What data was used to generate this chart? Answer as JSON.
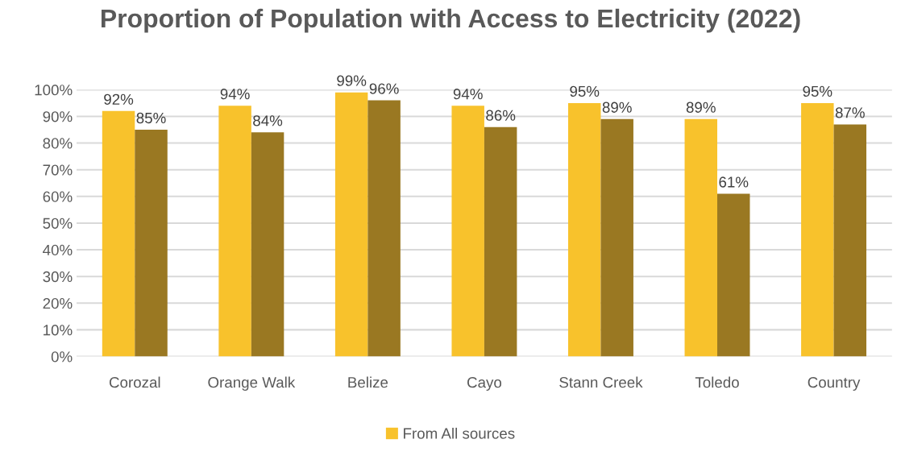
{
  "chart_data": {
    "type": "bar",
    "title": "Proportion of Population with Access to Electricity (2022)",
    "categories": [
      "Corozal",
      "Orange Walk",
      "Belize",
      "Cayo",
      "Stann Creek",
      "Toledo",
      "Country"
    ],
    "series": [
      {
        "name": "From All sources",
        "color": "#f8c22c",
        "values": [
          92,
          94,
          99,
          94,
          95,
          89,
          95
        ],
        "value_labels": [
          "92%",
          "94%",
          "99%",
          "94%",
          "95%",
          "89%",
          "95%"
        ]
      },
      {
        "color": "#9a7822",
        "values": [
          85,
          84,
          96,
          86,
          89,
          61,
          87
        ],
        "value_labels": [
          "85%",
          "84%",
          "96%",
          "86%",
          "89%",
          "61%",
          "87%"
        ]
      }
    ],
    "ylim": [
      0,
      100
    ],
    "yticks": [
      {
        "value": 0,
        "label": "0%"
      },
      {
        "value": 10,
        "label": "10%"
      },
      {
        "value": 20,
        "label": "20%"
      },
      {
        "value": 30,
        "label": "30%"
      },
      {
        "value": 40,
        "label": "40%"
      },
      {
        "value": 50,
        "label": "50%"
      },
      {
        "value": 60,
        "label": "60%"
      },
      {
        "value": 70,
        "label": "70%"
      },
      {
        "value": 80,
        "label": "80%"
      },
      {
        "value": 90,
        "label": "90%"
      },
      {
        "value": 100,
        "label": "100%"
      }
    ],
    "grid": "y",
    "legend": "bottom"
  }
}
